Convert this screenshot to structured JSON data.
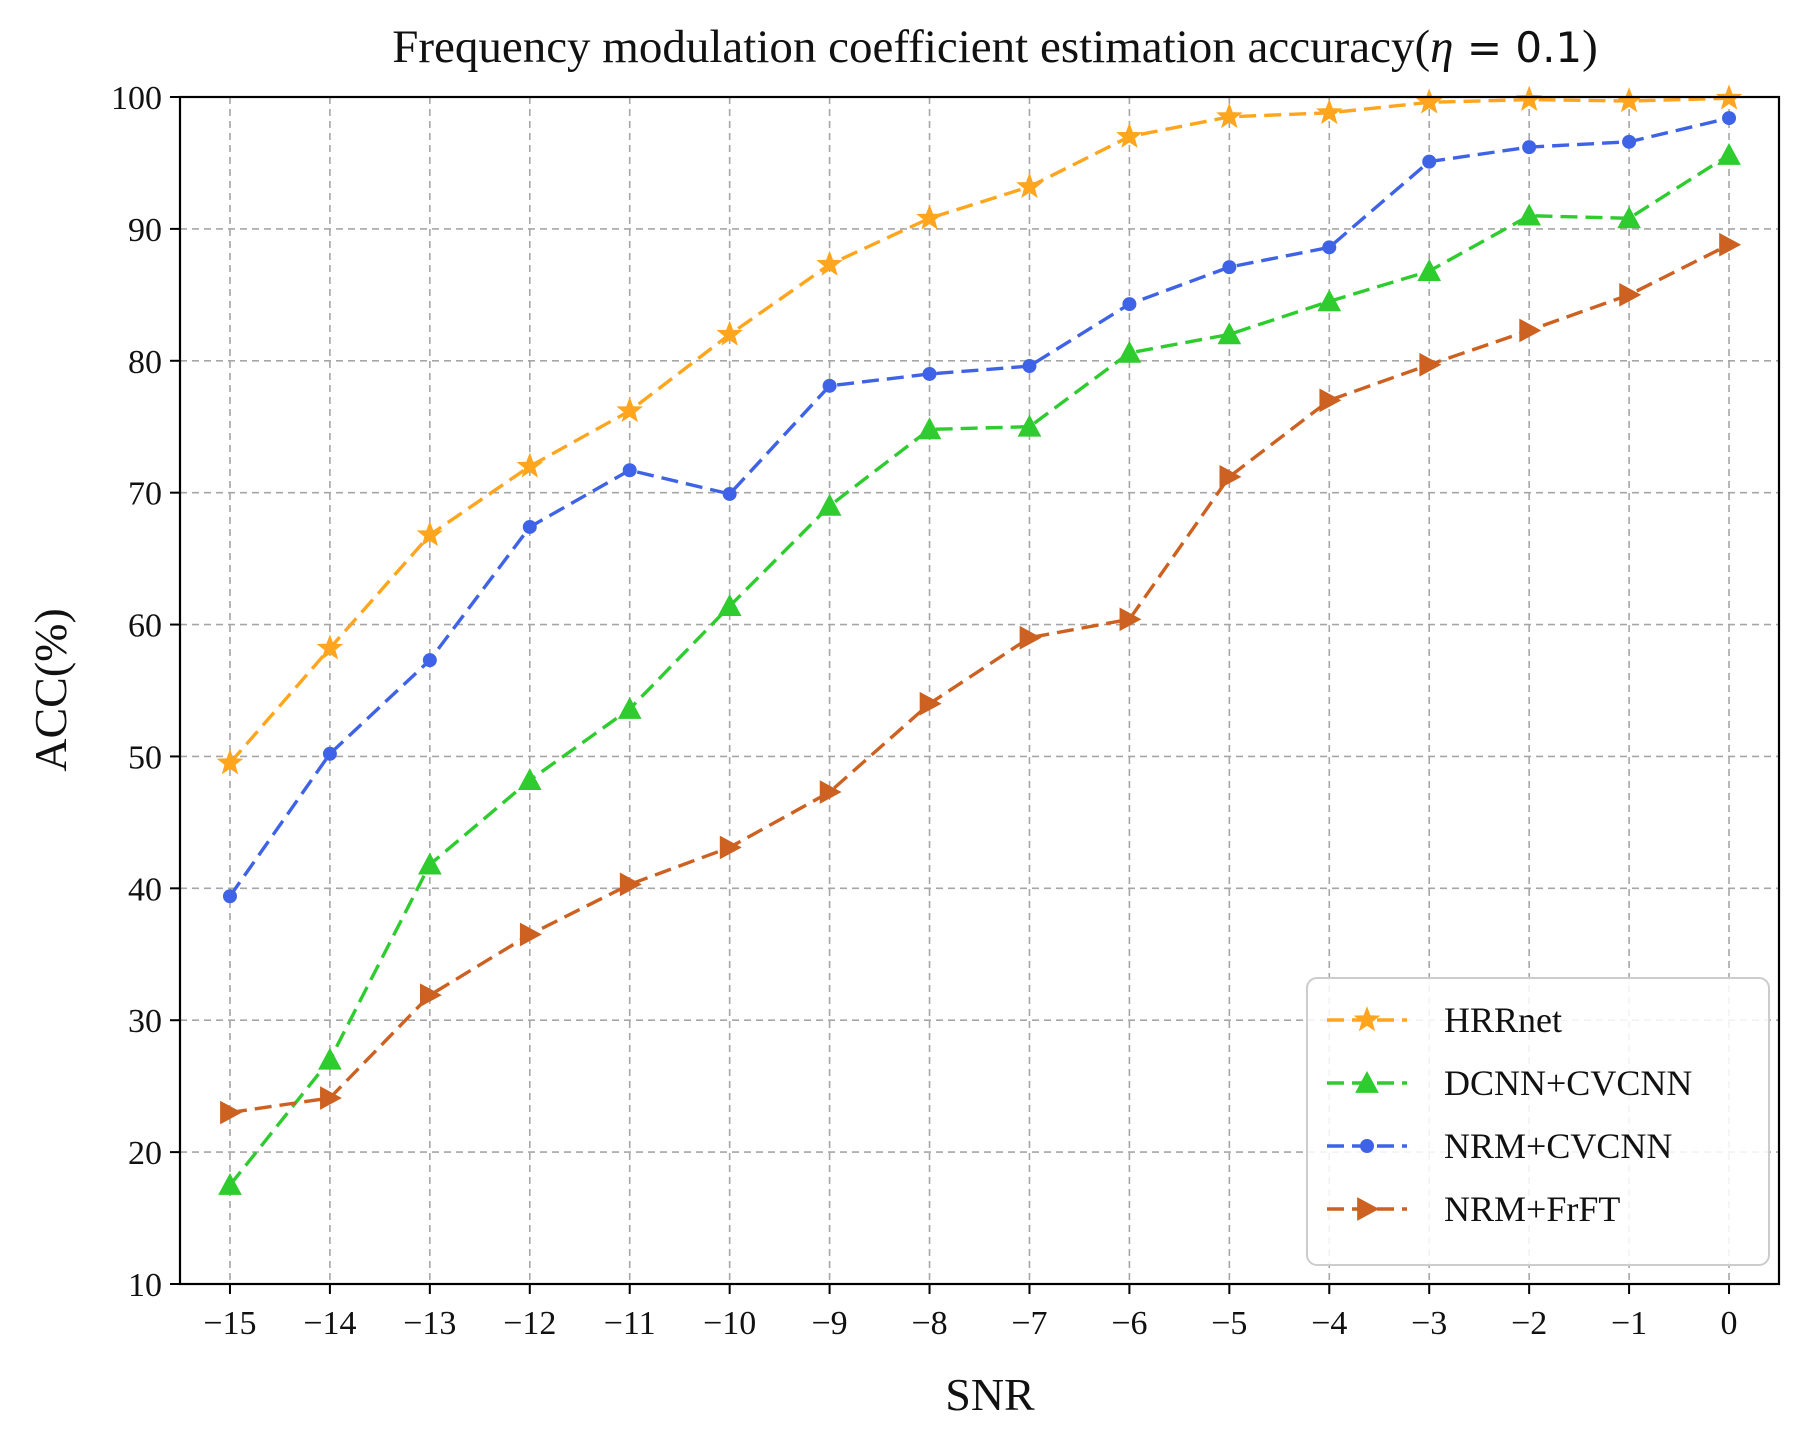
{
  "chart_data": {
    "type": "line",
    "title_main": "Frequency modulation coefficient estimation accuracy(",
    "title_symbol": "η",
    "title_eq": " = 0.1",
    "title_close": ")",
    "xlabel": "SNR",
    "ylabel": "ACC(%)",
    "xlim": [
      -15.5,
      0.5
    ],
    "ylim": [
      10,
      100
    ],
    "grid": true,
    "legend_position": "lower-right",
    "x": [
      -15,
      -14,
      -13,
      -12,
      -11,
      -10,
      -9,
      -8,
      -7,
      -6,
      -5,
      -4,
      -3,
      -2,
      -1,
      0
    ],
    "x_tick_labels": [
      "−15",
      "−14",
      "−13",
      "−12",
      "−11",
      "−10",
      "−9",
      "−8",
      "−7",
      "−6",
      "−5",
      "−4",
      "−3",
      "−2",
      "−1",
      "0"
    ],
    "y_ticks": [
      10,
      20,
      30,
      40,
      50,
      60,
      70,
      80,
      90,
      100
    ],
    "y_tick_labels": [
      "10",
      "20",
      "30",
      "40",
      "50",
      "60",
      "70",
      "80",
      "90",
      "100"
    ],
    "series": [
      {
        "name": "HRRnet",
        "color": "#FFA51E",
        "marker": "star",
        "values": [
          49.5,
          58.2,
          66.8,
          72.0,
          76.2,
          82.0,
          87.3,
          90.8,
          93.2,
          97.0,
          98.5,
          98.8,
          99.6,
          99.8,
          99.7,
          99.9
        ]
      },
      {
        "name": "DCNN+CVCNN",
        "color": "#2ECC2E",
        "marker": "triangle-up",
        "values": [
          17.5,
          27.0,
          41.8,
          48.2,
          53.6,
          61.4,
          69.0,
          74.8,
          75.0,
          80.6,
          82.0,
          84.5,
          86.8,
          91.0,
          90.8,
          95.6
        ]
      },
      {
        "name": "NRM+CVCNN",
        "color": "#3F63E6",
        "marker": "circle",
        "values": [
          39.4,
          50.2,
          57.3,
          67.4,
          71.7,
          69.9,
          78.1,
          79.0,
          79.6,
          84.3,
          87.1,
          88.6,
          95.1,
          96.2,
          96.6,
          98.4
        ]
      },
      {
        "name": "NRM+FrFT",
        "color": "#CC6121",
        "marker": "triangle-right",
        "values": [
          23.0,
          24.1,
          31.9,
          36.5,
          40.3,
          43.1,
          47.3,
          54.0,
          59.0,
          60.4,
          71.2,
          77.0,
          79.7,
          82.3,
          85.0,
          88.8
        ]
      }
    ]
  }
}
